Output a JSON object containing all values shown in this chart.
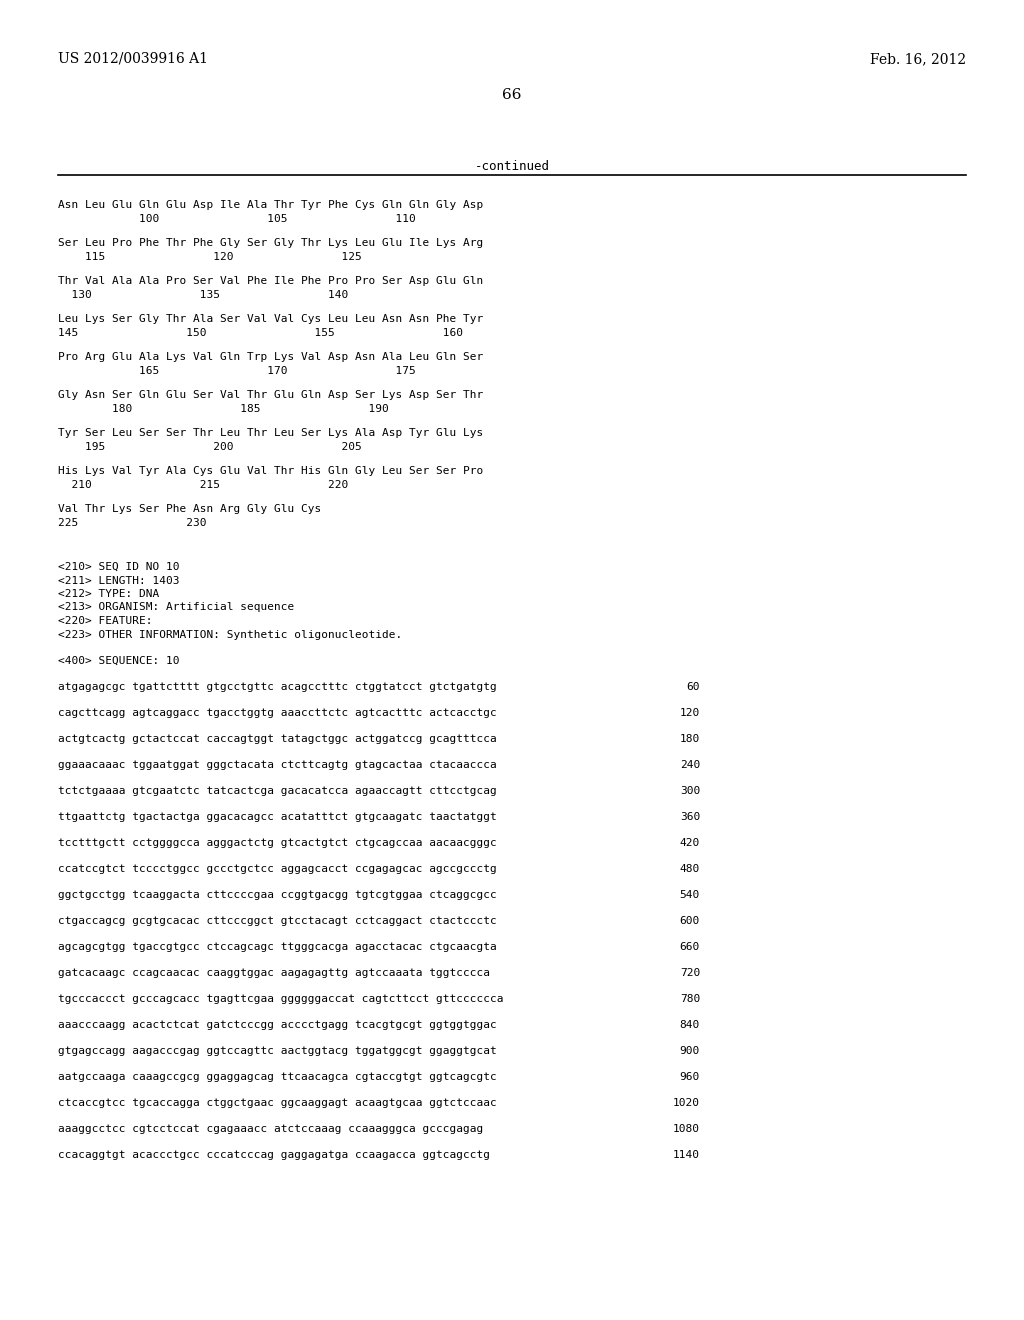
{
  "header_left": "US 2012/0039916 A1",
  "header_right": "Feb. 16, 2012",
  "page_number": "66",
  "continued_text": "-continued",
  "bg_color": "#ffffff",
  "seq_info": [
    "<210> SEQ ID NO 10",
    "<211> LENGTH: 1403",
    "<212> TYPE: DNA",
    "<213> ORGANISM: Artificial sequence",
    "<220> FEATURE:",
    "<223> OTHER INFORMATION: Synthetic oligonucleotide."
  ],
  "sequence_label": "<400> SEQUENCE: 10",
  "dna_lines": [
    [
      "atgagagcgc tgattctttt gtgcctgttc acagcctttc ctggtatcct gtctgatgtg",
      "60"
    ],
    [
      "cagcttcagg agtcaggacc tgacctggtg aaaccttctc agtcactttc actcacctgc",
      "120"
    ],
    [
      "actgtcactg gctactccat caccagtggt tatagctggc actggatccg gcagtttcca",
      "180"
    ],
    [
      "ggaaacaaac tggaatggat gggctacata ctcttcagtg gtagcactaa ctacaaccca",
      "240"
    ],
    [
      "tctctgaaaa gtcgaatctc tatcactcga gacacatcca agaaccagtt cttcctgcag",
      "300"
    ],
    [
      "ttgaattctg tgactactga ggacacagcc acatatttct gtgcaagatc taactatggt",
      "360"
    ],
    [
      "tcctttgctt cctggggcca agggactctg gtcactgtct ctgcagccaa aacaacgggc",
      "420"
    ],
    [
      "ccatccgtct tcccctggcc gccctgctcc aggagcacct ccgagagcac agccgccctg",
      "480"
    ],
    [
      "ggctgcctgg tcaaggacta cttccccgaa ccggtgacgg tgtcgtggaa ctcaggcgcc",
      "540"
    ],
    [
      "ctgaccagcg gcgtgcacac cttcccggct gtcctacagt cctcaggact ctactccctc",
      "600"
    ],
    [
      "agcagcgtgg tgaccgtgcc ctccagcagc ttgggcacga agacctacac ctgcaacgta",
      "660"
    ],
    [
      "gatcacaagc ccagcaacac caaggtggac aagagagttg agtccaaata tggtcccca",
      "720"
    ],
    [
      "tgcccaccct gcccagcacc tgagttcgaa ggggggaccat cagtcttcct gttcccccca",
      "780"
    ],
    [
      "aaacccaagg acactctcat gatctcccgg acccctgagg tcacgtgcgt ggtggtggac",
      "840"
    ],
    [
      "gtgagccagg aagacccgag ggtccagttc aactggtacg tggatggcgt ggaggtgcat",
      "900"
    ],
    [
      "aatgccaaga caaagccgcg ggaggagcag ttcaacagca cgtaccgtgt ggtcagcgtc",
      "960"
    ],
    [
      "ctcaccgtcc tgcaccagga ctggctgaac ggcaaggagt acaagtgcaa ggtctccaac",
      "1020"
    ],
    [
      "aaaggcctcc cgtcctccat cgagaaacc atctccaaag ccaaagggca gcccgagag",
      "1080"
    ],
    [
      "ccacaggtgt acaccctgcc cccatcccag gaggagatga ccaagacca ggtcagcctg",
      "1140"
    ]
  ]
}
